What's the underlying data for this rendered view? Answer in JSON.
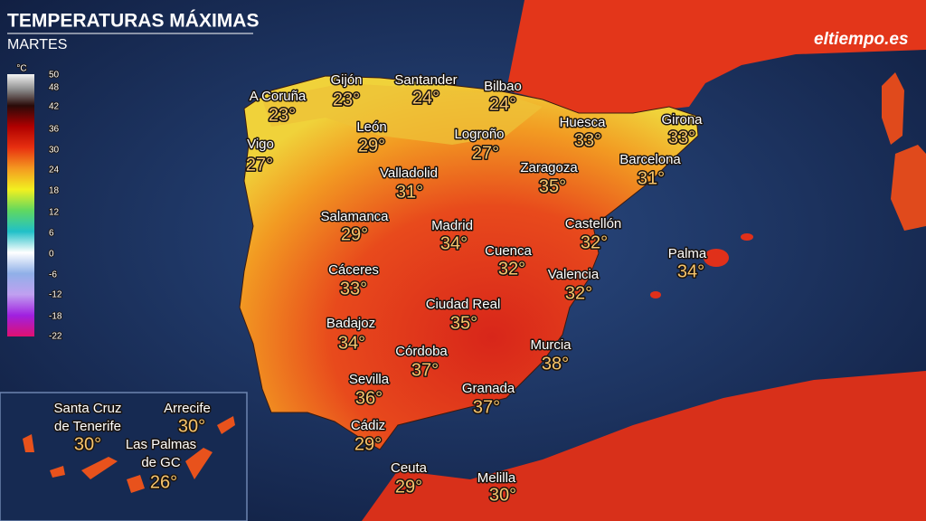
{
  "header": {
    "title": "TEMPERATURAS MÁXIMAS",
    "subtitle": "MARTES",
    "brand": "eltiempo.es"
  },
  "legend": {
    "unit": "°C",
    "labels": [
      50,
      48,
      42,
      36,
      30,
      24,
      18,
      12,
      6,
      0,
      -6,
      -12,
      -18,
      -22
    ]
  },
  "cities": [
    {
      "name": [
        "A Coruña"
      ],
      "temp": "23°"
    },
    {
      "name": [
        "Gijón"
      ],
      "temp": "23°"
    },
    {
      "name": [
        "Santander"
      ],
      "temp": "24°"
    },
    {
      "name": [
        "Bilbao"
      ],
      "temp": "24°"
    },
    {
      "name": [
        "Vigo"
      ],
      "temp": "27°"
    },
    {
      "name": [
        "León"
      ],
      "temp": "29°"
    },
    {
      "name": [
        "Logroño"
      ],
      "temp": "27°"
    },
    {
      "name": [
        "Huesca"
      ],
      "temp": "33°"
    },
    {
      "name": [
        "Girona"
      ],
      "temp": "33°"
    },
    {
      "name": [
        "Zaragoza"
      ],
      "temp": "35°"
    },
    {
      "name": [
        "Barcelona"
      ],
      "temp": "31°"
    },
    {
      "name": [
        "Valladolid"
      ],
      "temp": "31°"
    },
    {
      "name": [
        "Salamanca"
      ],
      "temp": "29°"
    },
    {
      "name": [
        "Madrid"
      ],
      "temp": "34°"
    },
    {
      "name": [
        "Castellón"
      ],
      "temp": "32°"
    },
    {
      "name": [
        "Cuenca"
      ],
      "temp": "32°"
    },
    {
      "name": [
        "Palma"
      ],
      "temp": "34°"
    },
    {
      "name": [
        "Cáceres"
      ],
      "temp": "33°"
    },
    {
      "name": [
        "Valencia"
      ],
      "temp": "32°"
    },
    {
      "name": [
        "Ciudad Real"
      ],
      "temp": "35°"
    },
    {
      "name": [
        "Badajoz"
      ],
      "temp": "34°"
    },
    {
      "name": [
        "Córdoba"
      ],
      "temp": "37°"
    },
    {
      "name": [
        "Murcia"
      ],
      "temp": "38°"
    },
    {
      "name": [
        "Sevilla"
      ],
      "temp": "36°"
    },
    {
      "name": [
        "Granada"
      ],
      "temp": "37°"
    },
    {
      "name": [
        "Cádiz"
      ],
      "temp": "29°"
    },
    {
      "name": [
        "Ceuta"
      ],
      "temp": "29°"
    },
    {
      "name": [
        "Melilla"
      ],
      "temp": "30°"
    },
    {
      "name": [
        "Santa Cruz",
        "de Tenerife"
      ],
      "temp": "30°"
    },
    {
      "name": [
        "Arrecife"
      ],
      "temp": "30°"
    },
    {
      "name": [
        "Las Palmas",
        "de GC"
      ],
      "temp": "26°"
    }
  ]
}
